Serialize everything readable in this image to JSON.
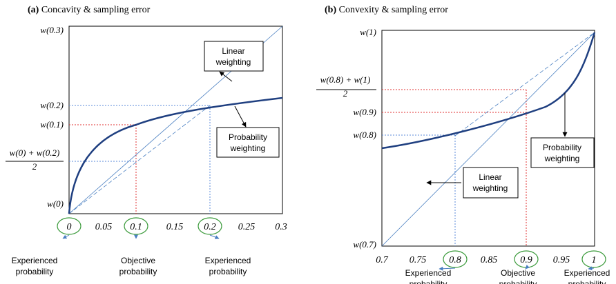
{
  "panels": [
    {
      "tag": "(a)",
      "title": "Concavity & sampling error",
      "y_labels": [
        "w(0.3)",
        "w(0.2)",
        "w(0.1)",
        "w(0) + w(0.2)",
        "2",
        "w(0)"
      ],
      "x_labels": [
        "0",
        "0.05",
        "0.1",
        "0.15",
        "0.2",
        "0.25",
        "0.3"
      ],
      "boxes": [
        "Linear\nweighting",
        "Probability\nweighting"
      ],
      "notes": [
        "Experienced\nprobability",
        "Objective\nprobability",
        "Experienced\nprobability"
      ]
    },
    {
      "tag": "(b)",
      "title": "Convexity & sampling error",
      "y_labels": [
        "w(1)",
        "w(0.8) + w(1)",
        "2",
        "w(0.9)",
        "w(0.8)",
        "w(0.7)"
      ],
      "x_labels": [
        "0.7",
        "0.75",
        "0.8",
        "0.85",
        "0.9",
        "0.95",
        "1"
      ],
      "boxes": [
        "Linear\nweighting",
        "Probability\nweighting"
      ],
      "notes": [
        "Experienced\nprobability",
        "Objective\nprobability",
        "Experienced\nprobability"
      ]
    }
  ]
}
